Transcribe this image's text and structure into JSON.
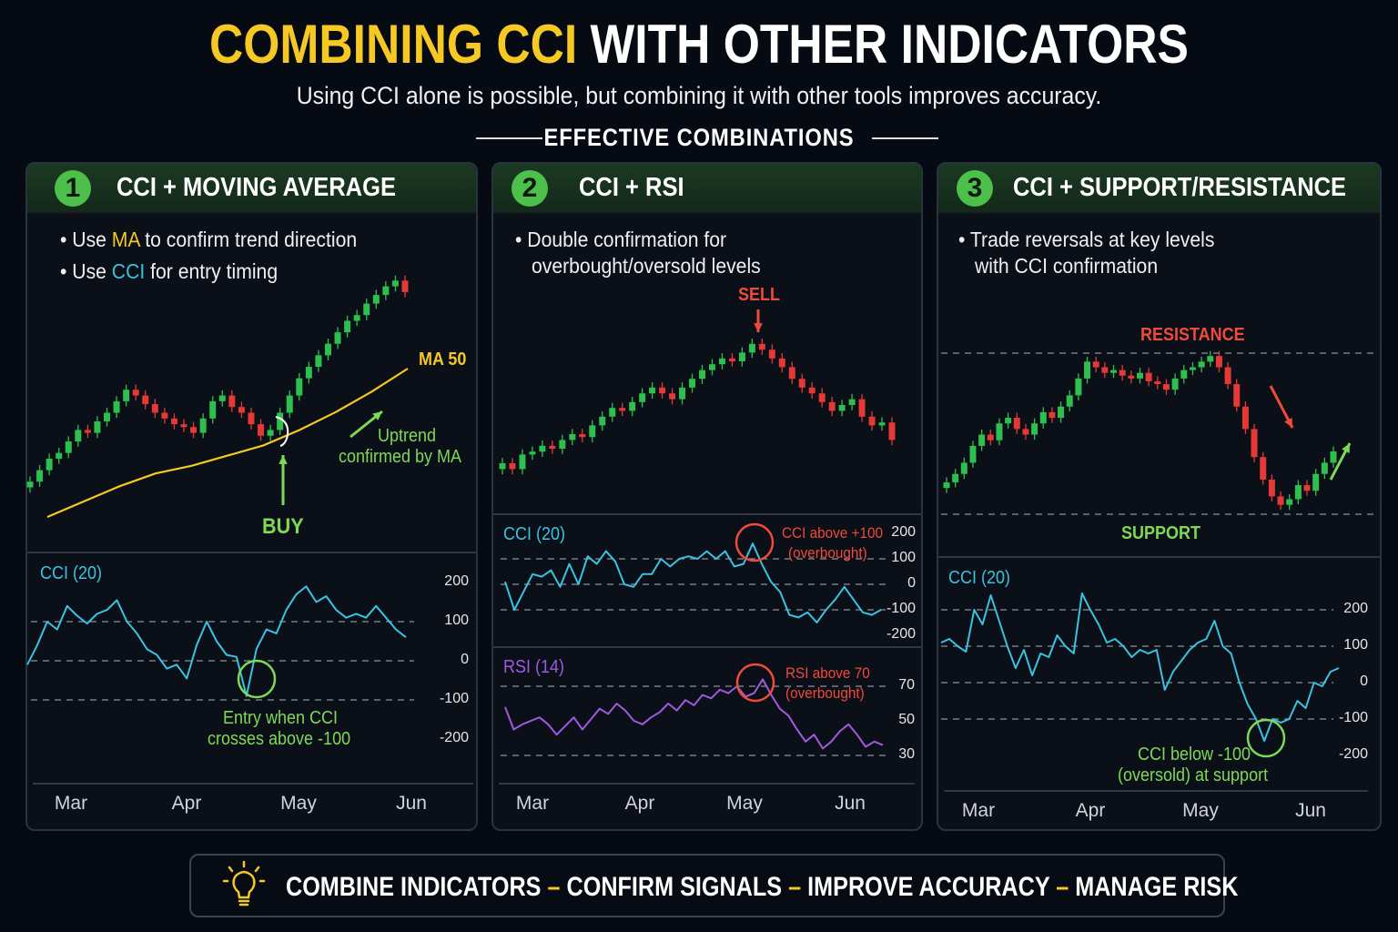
{
  "header": {
    "title_highlight": "COMBINING CCI",
    "title_rest": "WITH OTHER INDICATORS",
    "subtitle": "Using CCI alone is possible, but combining it with other tools improves accuracy.",
    "section": "EFFECTIVE COMBINATIONS"
  },
  "panels": [
    {
      "number": "1",
      "title": "CCI + MOVING AVERAGE",
      "bullets": [
        [
          "Use ",
          "MA",
          " to confirm trend direction"
        ],
        [
          "Use ",
          "CCI",
          " for entry timing"
        ]
      ],
      "annotations": {
        "ma": "MA 50",
        "uptrend1": "Uptrend",
        "uptrend2": "confirmed by MA",
        "buy": "BUY",
        "entry1": "Entry when CCI",
        "entry2": "crosses above -100"
      }
    },
    {
      "number": "2",
      "title": "CCI + RSI",
      "bullets": [
        [
          "Double confirmation for"
        ],
        [
          "overbought/oversold levels"
        ]
      ],
      "annotations": {
        "sell": "SELL",
        "cci1": "CCI above +100",
        "cci2": "(overbought)",
        "rsi1": "RSI above 70",
        "rsi2": "(overbought)"
      }
    },
    {
      "number": "3",
      "title": "CCI + SUPPORT/RESISTANCE",
      "bullets": [
        [
          "Trade reversals at key levels"
        ],
        [
          "with CCI confirmation"
        ]
      ],
      "annotations": {
        "resistance": "RESISTANCE",
        "support": "SUPPORT",
        "cci1": "CCI below -100",
        "cci2": "(oversold) at support"
      }
    }
  ],
  "footer": {
    "items": [
      "COMBINE INDICATORS",
      "CONFIRM SIGNALS",
      "IMPROVE ACCURACY",
      "MANAGE RISK"
    ],
    "separator": "–",
    "icon": "lightbulb-icon"
  },
  "colors": {
    "accent": "#f5c823",
    "up": "#2fbf4f",
    "down": "#e53935",
    "cci": "#3ac3e0",
    "rsi": "#a05ae0",
    "signal_green": "#7ed957",
    "signal_red": "#f04a3a",
    "header_bg": "#1b3a22"
  },
  "chart_data": [
    {
      "type": "candlestick+line",
      "months": [
        "Mar",
        "Apr",
        "May",
        "Jun"
      ],
      "price_close": [
        100,
        104,
        108,
        110,
        114,
        118,
        117,
        121,
        124,
        128,
        132,
        130,
        127,
        124,
        122,
        120,
        119,
        117,
        122,
        128,
        130,
        126,
        124,
        120,
        116,
        118,
        124,
        130,
        136,
        140,
        144,
        148,
        152,
        156,
        158,
        162,
        165,
        168,
        170,
        166
      ],
      "ma50": [
        88,
        94,
        100,
        105,
        108,
        112,
        116,
        122,
        129,
        137,
        146
      ],
      "cci": {
        "label": "CCI (20)",
        "ticks": [
          200,
          100,
          0,
          -100,
          -200
        ],
        "levels": [
          100,
          0,
          -100
        ],
        "ylim": [
          -200,
          200
        ],
        "values": [
          -10,
          40,
          100,
          80,
          140,
          115,
          95,
          120,
          130,
          155,
          100,
          70,
          30,
          15,
          -20,
          -10,
          -45,
          40,
          100,
          50,
          15,
          10,
          -90,
          30,
          80,
          70,
          130,
          170,
          190,
          150,
          165,
          130,
          110,
          120,
          110,
          140,
          110,
          80,
          60
        ]
      }
    },
    {
      "type": "candlestick+line",
      "months": [
        "Mar",
        "Apr",
        "May",
        "Jun"
      ],
      "price_close": [
        100,
        98,
        103,
        104,
        106,
        105,
        108,
        110,
        109,
        113,
        116,
        119,
        118,
        121,
        124,
        126,
        124,
        122,
        126,
        129,
        132,
        134,
        136,
        135,
        138,
        141,
        139,
        136,
        133,
        129,
        126,
        124,
        121,
        118,
        120,
        122,
        116,
        113,
        114,
        108
      ],
      "cci": {
        "label": "CCI (20)",
        "ticks": [
          200,
          100,
          0,
          -100,
          -200
        ],
        "levels": [
          100,
          0,
          -100
        ],
        "ylim": [
          -200,
          200
        ],
        "values": [
          10,
          -100,
          -30,
          40,
          30,
          55,
          -10,
          80,
          0,
          110,
          80,
          130,
          90,
          0,
          -10,
          40,
          40,
          100,
          70,
          100,
          110,
          100,
          130,
          100,
          130,
          70,
          80,
          160,
          80,
          10,
          -30,
          -120,
          -130,
          -110,
          -150,
          -100,
          -60,
          -10,
          -60,
          -110,
          -120,
          -100
        ]
      },
      "rsi": {
        "label": "RSI (14)",
        "ticks": [
          70,
          50,
          30
        ],
        "levels": [
          70,
          30
        ],
        "ylim": [
          30,
          70
        ],
        "values": [
          58,
          45,
          48,
          50,
          52,
          48,
          42,
          47,
          52,
          45,
          51,
          57,
          54,
          60,
          56,
          50,
          48,
          52,
          55,
          60,
          56,
          62,
          59,
          65,
          63,
          68,
          66,
          70,
          64,
          66,
          74,
          65,
          57,
          53,
          45,
          38,
          42,
          34,
          38,
          44,
          48,
          42,
          35,
          38,
          36
        ]
      }
    },
    {
      "type": "candlestick+line",
      "months": [
        "Mar",
        "Apr",
        "May",
        "Jun"
      ],
      "price_close": [
        105,
        108,
        112,
        118,
        122,
        120,
        126,
        128,
        124,
        122,
        126,
        130,
        128,
        132,
        136,
        142,
        148,
        146,
        144,
        145,
        143,
        142,
        144,
        141,
        140,
        138,
        142,
        145,
        146,
        148,
        150,
        146,
        140,
        132,
        124,
        114,
        106,
        100,
        97,
        99,
        104,
        102,
        108,
        112,
        116
      ],
      "resistance": 150,
      "support": 95,
      "cci": {
        "label": "CCI (20)",
        "ticks": [
          200,
          100,
          0,
          -100,
          -200
        ],
        "levels": [
          200,
          100,
          0,
          -100
        ],
        "ylim": [
          -200,
          200
        ],
        "values": [
          110,
          120,
          100,
          85,
          200,
          160,
          240,
          170,
          100,
          40,
          90,
          20,
          80,
          70,
          130,
          100,
          80,
          245,
          200,
          160,
          110,
          120,
          100,
          70,
          90,
          80,
          90,
          -20,
          30,
          60,
          90,
          110,
          120,
          170,
          100,
          80,
          0,
          -60,
          -100,
          -160,
          -100,
          -110,
          -100,
          -50,
          -70,
          0,
          -10,
          30,
          40
        ]
      }
    }
  ]
}
